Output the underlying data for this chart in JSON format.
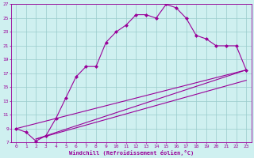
{
  "xlabel": "Windchill (Refroidissement éolien,°C)",
  "bg_color": "#cff0f0",
  "grid_color": "#99cccc",
  "line_color": "#990099",
  "axis_bg": "#cff0f0",
  "xlim": [
    -0.5,
    23.5
  ],
  "ylim": [
    7,
    27
  ],
  "xticks": [
    0,
    1,
    2,
    3,
    4,
    5,
    6,
    7,
    8,
    9,
    10,
    11,
    12,
    13,
    14,
    15,
    16,
    17,
    18,
    19,
    20,
    21,
    22,
    23
  ],
  "yticks": [
    7,
    9,
    11,
    13,
    15,
    17,
    19,
    21,
    23,
    25,
    27
  ],
  "curve_x": [
    0,
    1,
    2,
    3,
    4,
    5,
    6,
    7,
    8,
    9,
    10,
    11,
    12,
    13,
    14,
    15,
    16,
    17,
    18,
    19,
    20,
    21,
    22,
    23
  ],
  "curve_y": [
    9,
    8.5,
    7.2,
    8.0,
    10.5,
    13.5,
    16.5,
    18.0,
    18.0,
    21.5,
    23.0,
    24.0,
    25.5,
    25.5,
    25.0,
    27.0,
    26.5,
    25.0,
    22.5,
    22.0,
    21.0,
    21.0,
    21.0,
    17.5
  ],
  "line2_x": [
    2,
    23
  ],
  "line2_y": [
    7.5,
    17.5
  ],
  "line3_x": [
    2,
    23
  ],
  "line3_y": [
    7.5,
    16.0
  ],
  "line4_x": [
    0,
    23
  ],
  "line4_y": [
    9,
    17.5
  ]
}
